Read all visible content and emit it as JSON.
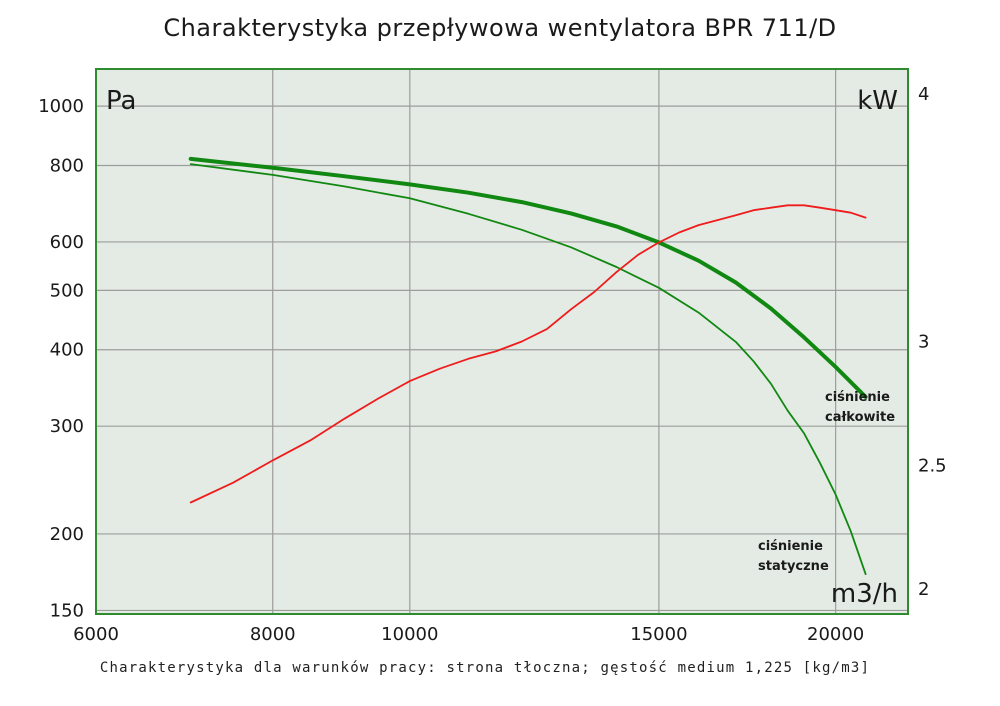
{
  "chart_data": {
    "type": "line",
    "title": "Charakterystyka przepływowa wentylatora BPR 711/D",
    "caption": "Charakterystyka dla warunków pracy: strona tłoczna; gęstość medium 1,225 [kg/m3]",
    "x_unit": "m3/h",
    "y_left_unit": "Pa",
    "y_right_unit": "kW",
    "x_scale": "log",
    "y_left_scale": "log",
    "x_range": [
      6000,
      22500
    ],
    "y_left_range": [
      148,
      1150
    ],
    "y_right_range": [
      1.9,
      4.1
    ],
    "x_ticks": [
      "6000",
      "8000",
      "10000",
      "15000",
      "20000"
    ],
    "y_left_ticks": [
      "1000",
      "800",
      "600",
      "500",
      "400",
      "300",
      "200",
      "150"
    ],
    "y_right_ticks": [
      "4",
      "3",
      "2.5",
      "2"
    ],
    "grid": true,
    "colors": {
      "background": "#e4ebe4",
      "frame": "#2e8b2e",
      "grid": "#9c9c9c",
      "total": "#118811",
      "static": "#118811",
      "power": "#ee1c1c"
    },
    "series": [
      {
        "name": "ciśnienie całkowite",
        "axis": "left",
        "color": "#118811",
        "x": [
          7000,
          8000,
          9000,
          10000,
          11000,
          12000,
          13000,
          14000,
          15000,
          16000,
          17000,
          18000,
          19000,
          20000,
          21000
        ],
        "y": [
          820,
          793,
          768,
          745,
          722,
          697,
          668,
          636,
          599,
          559,
          515,
          467,
          419,
          375,
          335
        ]
      },
      {
        "name": "ciśnienie statyczne",
        "axis": "left",
        "color": "#118811",
        "x": [
          7000,
          8000,
          9000,
          10000,
          11000,
          12000,
          13000,
          14000,
          15000,
          16000,
          17000,
          17500,
          18000,
          18500,
          19000,
          19500,
          20000,
          20500,
          21000
        ],
        "y": [
          804,
          772,
          739,
          707,
          667,
          628,
          588,
          546,
          505,
          460,
          412,
          383,
          352,
          318,
          292,
          261,
          232,
          202,
          172
        ]
      },
      {
        "name": "",
        "axis": "right",
        "color": "#ee1c1c",
        "x": [
          7000,
          7500,
          8000,
          8500,
          9000,
          9500,
          10000,
          10500,
          11000,
          11500,
          12000,
          12500,
          13000,
          13500,
          14000,
          14500,
          15000,
          15500,
          16000,
          16500,
          17000,
          17500,
          18000,
          18500,
          19000,
          19500,
          20000,
          20500,
          21000
        ],
        "y": [
          2.35,
          2.43,
          2.52,
          2.6,
          2.69,
          2.77,
          2.84,
          2.89,
          2.93,
          2.96,
          3.0,
          3.05,
          3.13,
          3.2,
          3.28,
          3.35,
          3.4,
          3.44,
          3.47,
          3.49,
          3.51,
          3.53,
          3.54,
          3.55,
          3.55,
          3.54,
          3.53,
          3.52,
          3.5
        ]
      }
    ],
    "annotations": [
      {
        "text_lines": [
          "ciśnienie",
          "całkowite"
        ]
      },
      {
        "text_lines": [
          "ciśnienie",
          "statyczne"
        ]
      }
    ]
  }
}
